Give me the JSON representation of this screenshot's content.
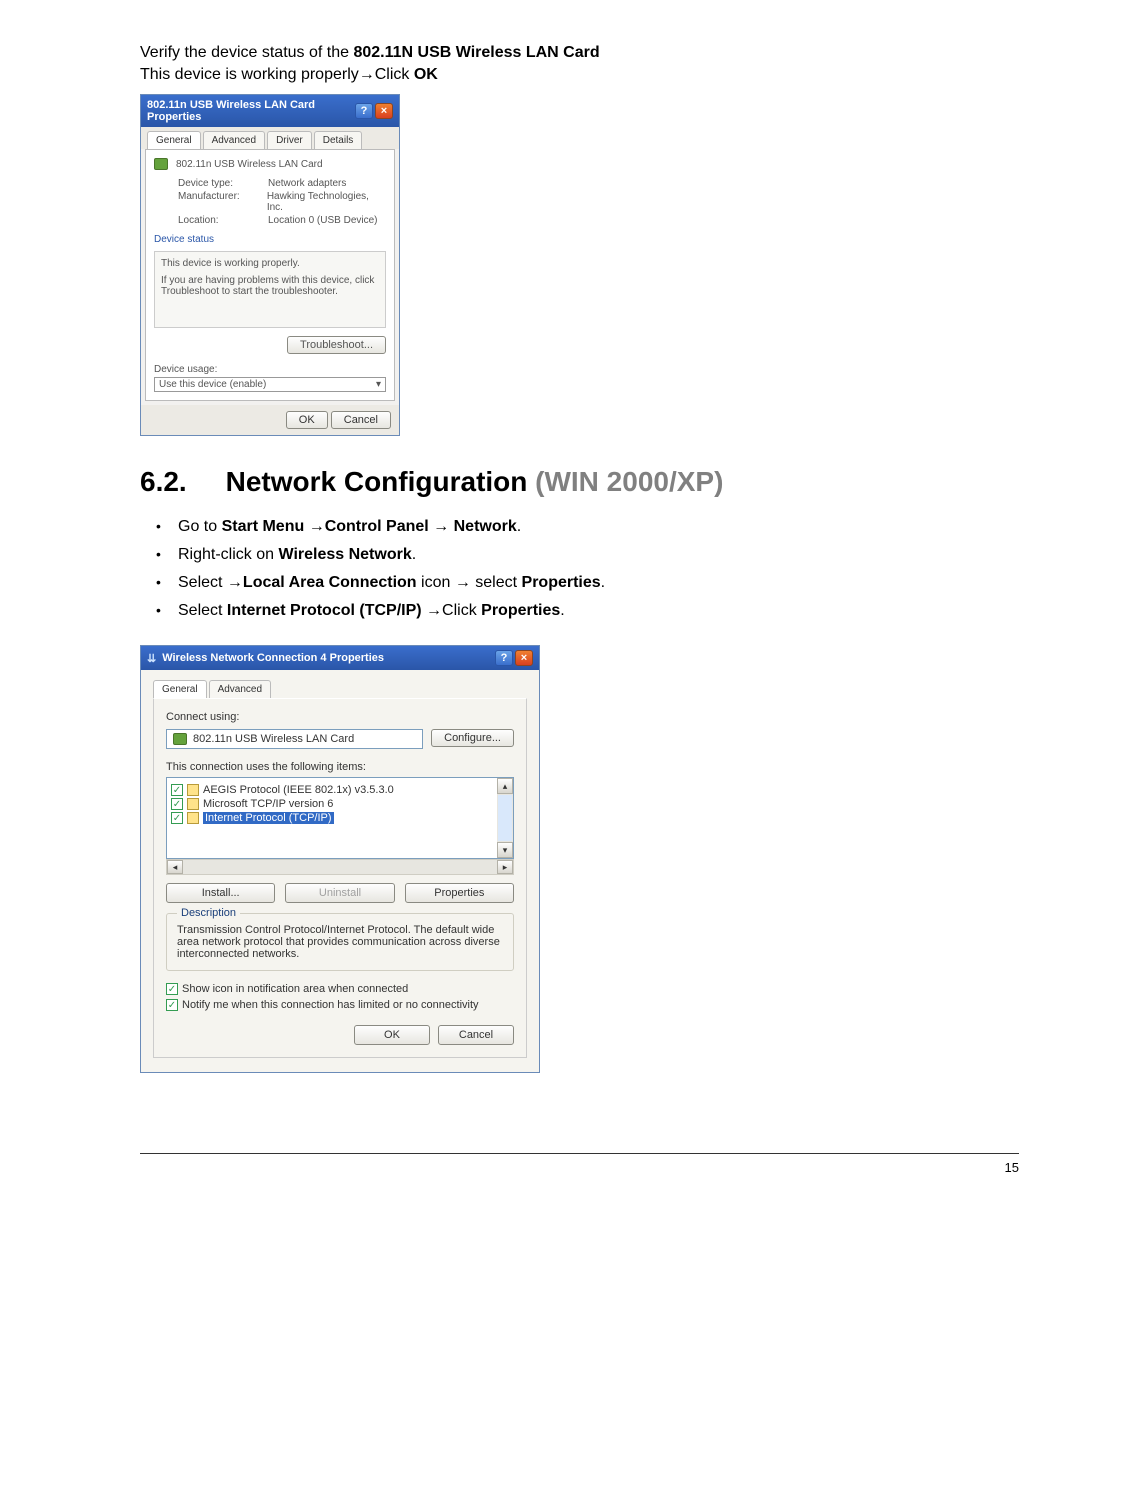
{
  "intro": {
    "line1_prefix": "Verify the device status of the ",
    "line1_bold": "802.11N USB Wireless LAN Card",
    "line2_prefix": "This device is working properly",
    "line2_arrow": "→",
    "line2_click": "Click ",
    "line2_ok": "OK"
  },
  "fig1": {
    "title": "802.11n USB Wireless LAN Card Properties",
    "tabs": [
      "General",
      "Advanced",
      "Driver",
      "Details"
    ],
    "device_name": "802.11n USB Wireless LAN Card",
    "rows": [
      {
        "label": "Device type:",
        "value": "Network adapters"
      },
      {
        "label": "Manufacturer:",
        "value": "Hawking Technologies, Inc."
      },
      {
        "label": "Location:",
        "value": "Location 0 (USB Device)"
      }
    ],
    "status_heading": "Device status",
    "status_text": "This device is working properly.",
    "status_help": "If you are having problems with this device, click Troubleshoot to start the troubleshooter.",
    "troubleshoot": "Troubleshoot...",
    "usage_label": "Device usage:",
    "usage_value": "Use this device (enable)",
    "ok": "OK",
    "cancel": "Cancel"
  },
  "section": {
    "num": "6.2.",
    "title": "Network Configuration",
    "grey": " (WIN 2000/XP)"
  },
  "bullets": [
    {
      "parts": [
        {
          "t": "Go to "
        },
        {
          "b": "Start Menu "
        },
        {
          "a": "→"
        },
        {
          "b": "Control Panel "
        },
        {
          "a": "→"
        },
        {
          "t": " "
        },
        {
          "b": "Network"
        },
        {
          "t": "."
        }
      ]
    },
    {
      "parts": [
        {
          "t": "Right-click on "
        },
        {
          "b": "Wireless Network"
        },
        {
          "t": "."
        }
      ]
    },
    {
      "parts": [
        {
          "t": "Select "
        },
        {
          "a": "→"
        },
        {
          "b": "Local Area Connection"
        },
        {
          "t": " icon "
        },
        {
          "a": "→"
        },
        {
          "t": " select "
        },
        {
          "b": "Properties"
        },
        {
          "t": "."
        }
      ]
    },
    {
      "parts": [
        {
          "t": "Select "
        },
        {
          "b": "Internet Protocol (TCP/IP) "
        },
        {
          "a": "→"
        },
        {
          "t": "Click "
        },
        {
          "b": "Properties"
        },
        {
          "t": "."
        }
      ]
    }
  ],
  "fig2": {
    "title": "Wireless Network Connection 4 Properties",
    "tabs": [
      "General",
      "Advanced"
    ],
    "connect_using": "Connect using:",
    "adapter": "802.11n USB Wireless LAN Card",
    "configure": "Configure...",
    "items_label": "This connection uses the following items:",
    "items": [
      {
        "checked": true,
        "icon": "proto-icon",
        "label": "AEGIS Protocol (IEEE 802.1x) v3.5.3.0",
        "selected": false
      },
      {
        "checked": true,
        "icon": "proto-icon",
        "label": "Microsoft TCP/IP version 6",
        "selected": false
      },
      {
        "checked": true,
        "icon": "proto-icon",
        "label": "Internet Protocol (TCP/IP)",
        "selected": true
      }
    ],
    "install": "Install...",
    "uninstall": "Uninstall",
    "properties": "Properties",
    "desc_legend": "Description",
    "desc_text": "Transmission Control Protocol/Internet Protocol. The default wide area network protocol that provides communication across diverse interconnected networks.",
    "chk1": "Show icon in notification area when connected",
    "chk2": "Notify me when this connection has limited or no connectivity",
    "ok": "OK",
    "cancel": "Cancel"
  },
  "page_number": "15"
}
